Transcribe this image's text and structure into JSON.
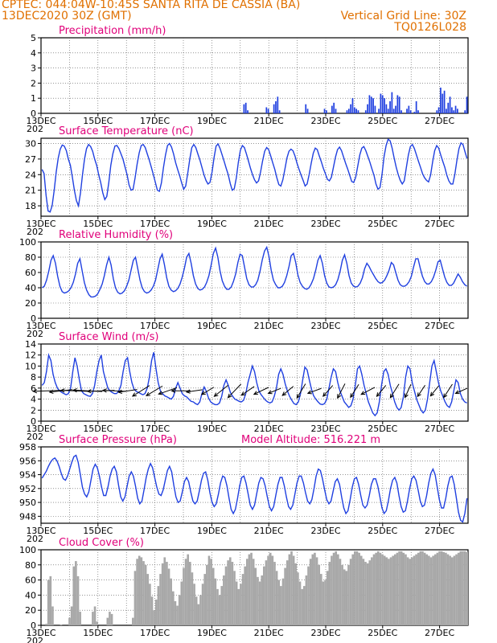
{
  "header": {
    "line1": "CPTEC:  044:04W-10:45S  SANTA RITA DE CASSIA (BA)",
    "line2_left": "13DEC2020 30Z (GMT)",
    "line2_right": "Vertical Grid Line: 30Z",
    "line3_right": "TQ0126L028"
  },
  "colors": {
    "header": "#e07000",
    "title": "#e0007a",
    "line": "#2040e0",
    "arrow": "#000000",
    "cloud": "#a8a8a8",
    "grid": "#555555"
  },
  "x_axis": {
    "labels": [
      "13DEC",
      "15DEC",
      "17DEC",
      "19DEC",
      "21DEC",
      "23DEC",
      "25DEC",
      "27DEC"
    ],
    "sub_label": "202",
    "days": 15
  },
  "chart_data": [
    {
      "name": "precipitation",
      "type": "bar",
      "title": "Precipitation (mm/h)",
      "ylim": [
        0,
        5
      ],
      "yticks": [
        0,
        1,
        2,
        3,
        4,
        5
      ],
      "values": [
        0,
        0,
        0,
        0,
        0,
        0,
        0,
        0,
        0,
        0,
        0,
        0,
        0,
        0,
        0,
        0,
        0,
        0,
        0,
        0,
        0,
        0,
        0,
        0,
        0,
        0,
        0,
        0,
        0,
        0,
        0,
        0,
        0,
        0,
        0,
        0,
        0,
        0,
        0,
        0,
        0,
        0,
        0,
        0,
        0,
        0,
        0,
        0,
        0,
        0,
        0,
        0,
        0,
        0,
        0,
        0,
        0,
        0,
        0,
        0,
        0,
        0,
        0,
        0,
        0,
        0,
        0,
        0,
        0,
        0,
        0,
        0,
        0,
        0,
        0,
        0,
        0,
        0,
        0,
        0,
        0,
        0,
        0,
        0,
        0,
        0,
        0,
        0,
        0,
        0,
        0,
        0,
        0,
        0,
        0,
        0,
        0,
        0,
        0,
        0,
        0,
        0,
        0,
        0,
        0,
        0,
        0,
        0,
        0.6,
        0.7,
        0.2,
        0,
        0,
        0,
        0,
        0,
        0,
        0,
        0,
        0,
        0.4,
        0.3,
        0,
        0,
        0.6,
        0.8,
        1.1,
        0.2,
        0,
        0,
        0,
        0,
        0,
        0,
        0,
        0,
        0,
        0,
        0,
        0,
        0,
        0.6,
        0.3,
        0,
        0,
        0,
        0,
        0,
        0,
        0,
        0,
        0.3,
        0.2,
        0,
        0,
        0.5,
        0.7,
        0.3,
        0,
        0,
        0,
        0,
        0,
        0.2,
        0.3,
        0.6,
        1,
        0.4,
        0.3,
        0.2,
        0,
        0,
        0,
        0.2,
        0.6,
        1.2,
        1.1,
        1,
        0.5,
        0,
        0.3,
        1.3,
        1.2,
        1,
        0.6,
        0.3,
        0.8,
        1.4,
        0.3,
        0.5,
        1.2,
        1.1,
        0.2,
        0,
        0,
        0.3,
        0.5,
        0.2,
        0,
        0.1,
        0.8,
        0.2,
        0,
        0,
        0,
        0,
        0,
        0,
        0,
        0,
        0,
        0.2,
        0.4,
        1.7,
        1.3,
        1.5,
        0.3,
        0.7,
        1.1,
        0.4,
        0.2,
        0.5,
        0.3,
        0,
        0,
        0,
        0.2,
        1.1
      ]
    },
    {
      "name": "surface_temperature",
      "type": "line",
      "title": "Surface Temperature (nC)",
      "ylim": [
        16,
        31
      ],
      "yticks": [
        18,
        21,
        24,
        27,
        30
      ],
      "values": [
        25,
        24.2,
        20,
        17,
        16.8,
        18,
        21,
        24.5,
        27.2,
        28.9,
        29.7,
        29.5,
        28.6,
        27,
        25.8,
        23.5,
        21,
        19,
        18,
        20.5,
        24,
        27,
        29,
        29.8,
        29.4,
        28.5,
        27,
        25.8,
        24,
        22.5,
        20.5,
        19.2,
        19.8,
        22.5,
        25.8,
        28,
        29.5,
        29.6,
        29,
        28,
        27,
        25.5,
        24,
        22,
        21,
        21.2,
        23.4,
        26,
        28.2,
        29.6,
        29.8,
        29.2,
        28,
        26.8,
        25.4,
        24,
        22.5,
        21,
        20.8,
        22.4,
        25.4,
        27.8,
        29.6,
        30,
        29.3,
        28,
        26.3,
        25,
        23.8,
        22.4,
        21.2,
        21.8,
        24.3,
        27,
        29.2,
        29.8,
        29.2,
        28,
        26.8,
        25.4,
        24,
        22.9,
        22.2,
        22.5,
        24.5,
        27.3,
        29.5,
        29.9,
        29,
        27.8,
        26.5,
        25.2,
        24,
        22.3,
        21,
        21.3,
        23.4,
        26.4,
        28.7,
        29.6,
        29.2,
        28,
        26.6,
        25.2,
        24,
        23,
        22.4,
        22.8,
        24.5,
        26.7,
        28.5,
        29.2,
        28.8,
        27.6,
        26.3,
        25,
        23.4,
        22.1,
        21.8,
        23,
        25,
        27.2,
        28.5,
        28.9,
        28.6,
        27.6,
        26.2,
        25,
        23.9,
        22.9,
        21.8,
        22.2,
        24,
        26.2,
        28.1,
        29.1,
        28.8,
        27.6,
        26.5,
        25.2,
        24.2,
        23.1,
        22.8,
        23.5,
        25.4,
        27.4,
        28.8,
        29.3,
        28.6,
        27.4,
        26.2,
        25.1,
        23.9,
        22.7,
        22.5,
        23.5,
        25.6,
        27.8,
        29.1,
        29.4,
        28.6,
        27.5,
        26.4,
        25.1,
        23.9,
        22.2,
        21.2,
        21.5,
        24,
        27.5,
        29.6,
        30.8,
        30.5,
        29.1,
        27.2,
        25.4,
        24,
        22.9,
        22.2,
        22.8,
        25.3,
        27.8,
        29.4,
        29.8,
        29,
        27.8,
        26.6,
        25.4,
        24.2,
        23.4,
        22.9,
        22.6,
        23.9,
        26.5,
        28.6,
        29.6,
        29.1,
        27.8,
        26.6,
        25.4,
        23.9,
        22.8,
        22.2,
        22.2,
        24.1,
        26.8,
        29,
        30.1,
        29.8,
        28.4,
        27.1
      ]
    },
    {
      "name": "relative_humidity",
      "type": "line",
      "title": "Relative Humidity (%)",
      "ylim": [
        0,
        100
      ],
      "yticks": [
        0,
        20,
        40,
        60,
        80,
        100
      ],
      "values": [
        40,
        42,
        50,
        62,
        76,
        82,
        72,
        55,
        42,
        35,
        33,
        34,
        36,
        40,
        47,
        58,
        72,
        78,
        62,
        47,
        37,
        31,
        28,
        28,
        29,
        32,
        38,
        45,
        56,
        70,
        80,
        70,
        52,
        40,
        34,
        32,
        33,
        36,
        42,
        50,
        63,
        76,
        80,
        65,
        50,
        40,
        35,
        33,
        34,
        37,
        42,
        50,
        64,
        78,
        84,
        70,
        53,
        42,
        37,
        35,
        36,
        39,
        45,
        54,
        66,
        80,
        85,
        72,
        56,
        45,
        39,
        37,
        38,
        41,
        47,
        56,
        70,
        85,
        92,
        80,
        62,
        49,
        42,
        38,
        38,
        41,
        48,
        58,
        73,
        84,
        82,
        67,
        52,
        44,
        41,
        41,
        44,
        50,
        62,
        77,
        88,
        93,
        81,
        63,
        50,
        44,
        40,
        40,
        42,
        47,
        56,
        68,
        82,
        85,
        73,
        57,
        47,
        42,
        39,
        38,
        40,
        45,
        52,
        63,
        76,
        82,
        72,
        56,
        46,
        41,
        40,
        41,
        44,
        51,
        62,
        76,
        83,
        72,
        56,
        46,
        42,
        41,
        42,
        46,
        53,
        65,
        72,
        68,
        62,
        57,
        52,
        48,
        46,
        47,
        50,
        56,
        63,
        73,
        70,
        60,
        50,
        44,
        42,
        42,
        44,
        48,
        55,
        67,
        78,
        78,
        66,
        55,
        48,
        45,
        45,
        48,
        54,
        63,
        74,
        76,
        65,
        54,
        47,
        43,
        43,
        46,
        52,
        58,
        54,
        48,
        44,
        42
      ]
    },
    {
      "name": "surface_wind",
      "type": "line",
      "title": "Surface Wind (m/s)",
      "ylim": [
        0,
        14
      ],
      "yticks": [
        0,
        2,
        4,
        6,
        8,
        10,
        12,
        14
      ],
      "values": [
        6.5,
        7,
        9,
        12,
        11,
        8.5,
        7,
        6,
        5.5,
        5.2,
        5,
        4.8,
        5,
        6,
        9,
        11.5,
        10,
        7.5,
        5.5,
        5,
        4.8,
        4.6,
        4.5,
        5,
        6.5,
        9,
        11,
        12,
        9,
        7.5,
        6,
        5.5,
        5.2,
        5,
        5,
        5.5,
        6.5,
        9,
        11,
        11.5,
        9,
        7,
        5.8,
        5.4,
        5.2,
        5,
        4.8,
        5,
        6,
        8,
        11,
        12.5,
        9.5,
        7,
        5.5,
        5,
        4.6,
        4.4,
        4.2,
        4,
        4.5,
        6,
        7,
        6,
        5,
        4.6,
        4.4,
        4,
        3.6,
        3.5,
        3.2,
        3,
        3.5,
        5,
        6.2,
        5.4,
        4.2,
        3.5,
        3.2,
        3,
        3,
        3.3,
        4.5,
        6.5,
        7.5,
        6.5,
        5.2,
        4.5,
        4,
        3.8,
        3.6,
        3.5,
        3.8,
        5,
        7,
        8.5,
        10,
        9,
        7,
        5.5,
        4.8,
        4.3,
        3.8,
        3.5,
        3.3,
        3.5,
        4.5,
        6,
        8.5,
        9.5,
        8.5,
        6.8,
        5.5,
        4.5,
        3.8,
        3.2,
        3,
        3.5,
        5,
        7.5,
        9.8,
        9.3,
        7.5,
        5.8,
        4.6,
        4,
        3.5,
        3.1,
        3,
        3.2,
        4,
        6,
        8,
        9.5,
        9,
        7,
        5.5,
        4.5,
        3.5,
        3,
        2.5,
        2.8,
        4,
        6.5,
        9.5,
        10,
        8.5,
        6.5,
        5,
        3.5,
        2.5,
        1.5,
        1,
        1.5,
        3.5,
        6.5,
        9,
        9.5,
        8.5,
        6.5,
        5,
        3.5,
        2.5,
        2,
        2.5,
        4.5,
        8,
        10,
        9.5,
        7,
        5.5,
        4,
        3,
        2,
        1.5,
        2,
        4,
        7,
        10,
        11,
        9,
        7,
        5.5,
        4.5,
        3.5,
        2.8,
        2.5,
        3.5,
        5.5,
        7.5,
        7,
        5,
        4,
        3.5,
        3.3
      ]
    },
    {
      "name": "surface_pressure",
      "type": "line",
      "title": "Surface Pressure (hPa)",
      "annotation": "Model Altitude: 516.221 m",
      "ylim": [
        947,
        958
      ],
      "yticks": [
        948,
        950,
        952,
        954,
        956,
        958
      ],
      "values": [
        953.5,
        954,
        954.5,
        955.2,
        955.8,
        956.2,
        956.4,
        956,
        955.2,
        954.2,
        953.4,
        953.2,
        953.8,
        954.8,
        955.8,
        956.6,
        956.8,
        955.8,
        954,
        952.2,
        951.2,
        950.8,
        951.5,
        953.2,
        954.8,
        955.5,
        955,
        953.8,
        952.2,
        951,
        951,
        952.2,
        953.8,
        954.8,
        955.2,
        954.4,
        952.5,
        950.8,
        950.2,
        950.8,
        952.3,
        953.8,
        954.4,
        953.8,
        952.3,
        950.6,
        949.8,
        950.2,
        951.8,
        953.6,
        954.8,
        955.6,
        955,
        953.6,
        952.2,
        951.2,
        951,
        951.8,
        953.2,
        954.6,
        955.2,
        954.4,
        952.5,
        950.8,
        950,
        950.2,
        951.5,
        953,
        953.6,
        953,
        951.5,
        950.2,
        949.8,
        950.2,
        951.6,
        953.2,
        954.2,
        954.4,
        953.2,
        951.4,
        950,
        949.4,
        949.8,
        951.2,
        952.8,
        953.8,
        953.6,
        952.4,
        950.6,
        949,
        948.4,
        949,
        950.6,
        952.4,
        953.6,
        953.8,
        952.8,
        951.2,
        949.6,
        949,
        949.6,
        951.2,
        952.8,
        953.6,
        953.4,
        952.4,
        950.8,
        949.4,
        948.8,
        949.4,
        951,
        952.6,
        953.6,
        953.6,
        952.4,
        950.8,
        949.4,
        949,
        949.6,
        951.2,
        952.8,
        953.8,
        953.8,
        952.8,
        951.4,
        950.2,
        949.8,
        950.4,
        952,
        953.8,
        954.8,
        954.6,
        953.4,
        951.8,
        950.4,
        949.8,
        950.2,
        951.6,
        953,
        953.4,
        952.6,
        950.8,
        949.2,
        948.4,
        948.8,
        950.4,
        952.2,
        953.4,
        953.6,
        952.6,
        951,
        949.6,
        949.2,
        949.6,
        951,
        952.6,
        953.4,
        953.4,
        952.4,
        950.8,
        949.2,
        948.4,
        948.8,
        950.2,
        952,
        953.2,
        953.6,
        952.8,
        951,
        949.4,
        948.6,
        948.8,
        950.2,
        952,
        953.4,
        953.8,
        953.2,
        951.8,
        950.2,
        949.4,
        949.6,
        951,
        952.8,
        954.2,
        954.8,
        954,
        952.2,
        950.4,
        949.2,
        949.2,
        950.6,
        952.4,
        953.6,
        953.8,
        952.6,
        950.6,
        948.6,
        947.4,
        947.2,
        948.4,
        950.6
      ]
    },
    {
      "name": "cloud_cover",
      "type": "bar",
      "title": "Cloud Cover (%)",
      "ylim": [
        0,
        100
      ],
      "yticks": [
        0,
        20,
        40,
        60,
        80,
        100
      ],
      "values": [
        0,
        0,
        2,
        60,
        65,
        25,
        0,
        0,
        0,
        1,
        0,
        0,
        0,
        10,
        25,
        78,
        85,
        65,
        18,
        0,
        0,
        0,
        0,
        0,
        18,
        25,
        5,
        0,
        0,
        0,
        0,
        10,
        18,
        15,
        0,
        0,
        0,
        0,
        0,
        0,
        0,
        0,
        0,
        10,
        72,
        88,
        92,
        90,
        85,
        80,
        68,
        55,
        38,
        20,
        34,
        52,
        68,
        82,
        90,
        84,
        75,
        62,
        45,
        32,
        26,
        40,
        58,
        76,
        88,
        94,
        84,
        70,
        55,
        38,
        28,
        40,
        55,
        68,
        80,
        92,
        88,
        76,
        62,
        48,
        40,
        52,
        66,
        78,
        86,
        90,
        84,
        72,
        58,
        48,
        55,
        68,
        78,
        88,
        94,
        96,
        88,
        76,
        64,
        58,
        66,
        78,
        86,
        92,
        96,
        92,
        84,
        72,
        60,
        52,
        62,
        76,
        86,
        94,
        98,
        92,
        82,
        70,
        58,
        48,
        52,
        66,
        78,
        88,
        94,
        96,
        90,
        80,
        68,
        58,
        60,
        72,
        84,
        92,
        96,
        98,
        94,
        88,
        80,
        74,
        72,
        80,
        88,
        94,
        98,
        98,
        96,
        92,
        88,
        84,
        82,
        86,
        90,
        94,
        96,
        98,
        96,
        94,
        92,
        90,
        88,
        90,
        92,
        94,
        96,
        98,
        98,
        96,
        94,
        90,
        88,
        90,
        92,
        94,
        96,
        98,
        98,
        96,
        94,
        92,
        90,
        92,
        94,
        96,
        98,
        98,
        97,
        96,
        94,
        92,
        90,
        92,
        94,
        96,
        98,
        98,
        98,
        97
      ]
    }
  ],
  "wind_vectors": {
    "unit": "m/s",
    "u": [
      -6,
      -4.5,
      -5.5,
      -6,
      -5.5,
      -4.5,
      -3.5,
      -3.2,
      -3,
      -3.4,
      -3.5,
      -2.8,
      -2,
      -2.5,
      -2.4,
      -2.2,
      -2.5,
      -2,
      -1.8,
      -1.5,
      -2.2,
      -1.6,
      -1.3,
      -1.4,
      -2.3,
      -1.5,
      -1.5,
      -1,
      -1.2,
      -1.3,
      -1.5,
      -1.8
    ],
    "v": [
      -0.2,
      -0.5,
      0.2,
      0.3,
      -0.2,
      0.2,
      -0.5,
      -2,
      -1.8,
      -1.2,
      0,
      -0.4,
      -1.2,
      -2,
      -2.5,
      -1.5,
      -1.2,
      -0.8,
      -1.5,
      -2.5,
      -0.8,
      -1.8,
      -2.5,
      -2.2,
      -1.2,
      -1.8,
      -2.4,
      -2.2,
      -1.8,
      -1.6,
      -2.3,
      -0.8
    ]
  }
}
